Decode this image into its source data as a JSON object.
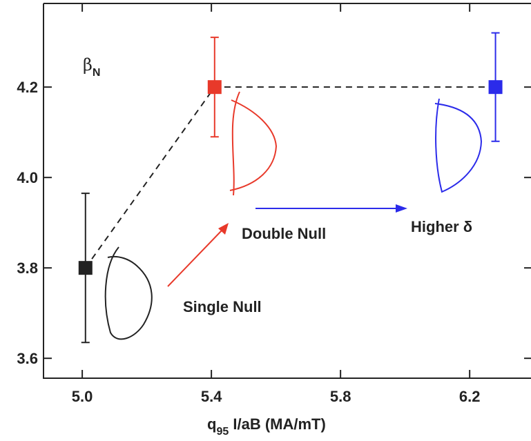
{
  "chart_data": {
    "type": "scatter",
    "y_label": [
      "β",
      "N"
    ],
    "x_label": [
      "q",
      "95",
      " I/aB (MA/mT)"
    ],
    "annotations": [
      "Double Null",
      "Single Null",
      "Higher δ"
    ],
    "annotation_colors": [
      "#e8392a",
      "#222222",
      "#2b2bea"
    ],
    "series": [
      {
        "x": [
          5.01,
          5.41,
          6.28
        ],
        "values": [
          3.8,
          4.2,
          4.2
        ],
        "errors": [
          0.165,
          0.11,
          0.12
        ],
        "colors": [
          "#222222",
          "#e8392a",
          "#2b2bea"
        ],
        "line_style": "dashed"
      }
    ],
    "xlim": [
      4.88,
      6.39
    ],
    "ylim": [
      3.556,
      4.385
    ],
    "xticks": [
      {
        "value": 5.0,
        "label": "5.0"
      },
      5.4,
      5.8,
      6.2
    ],
    "yticks": [
      3.6,
      3.8,
      {
        "value": 4.0,
        "label": "4.0"
      },
      4.2
    ]
  }
}
